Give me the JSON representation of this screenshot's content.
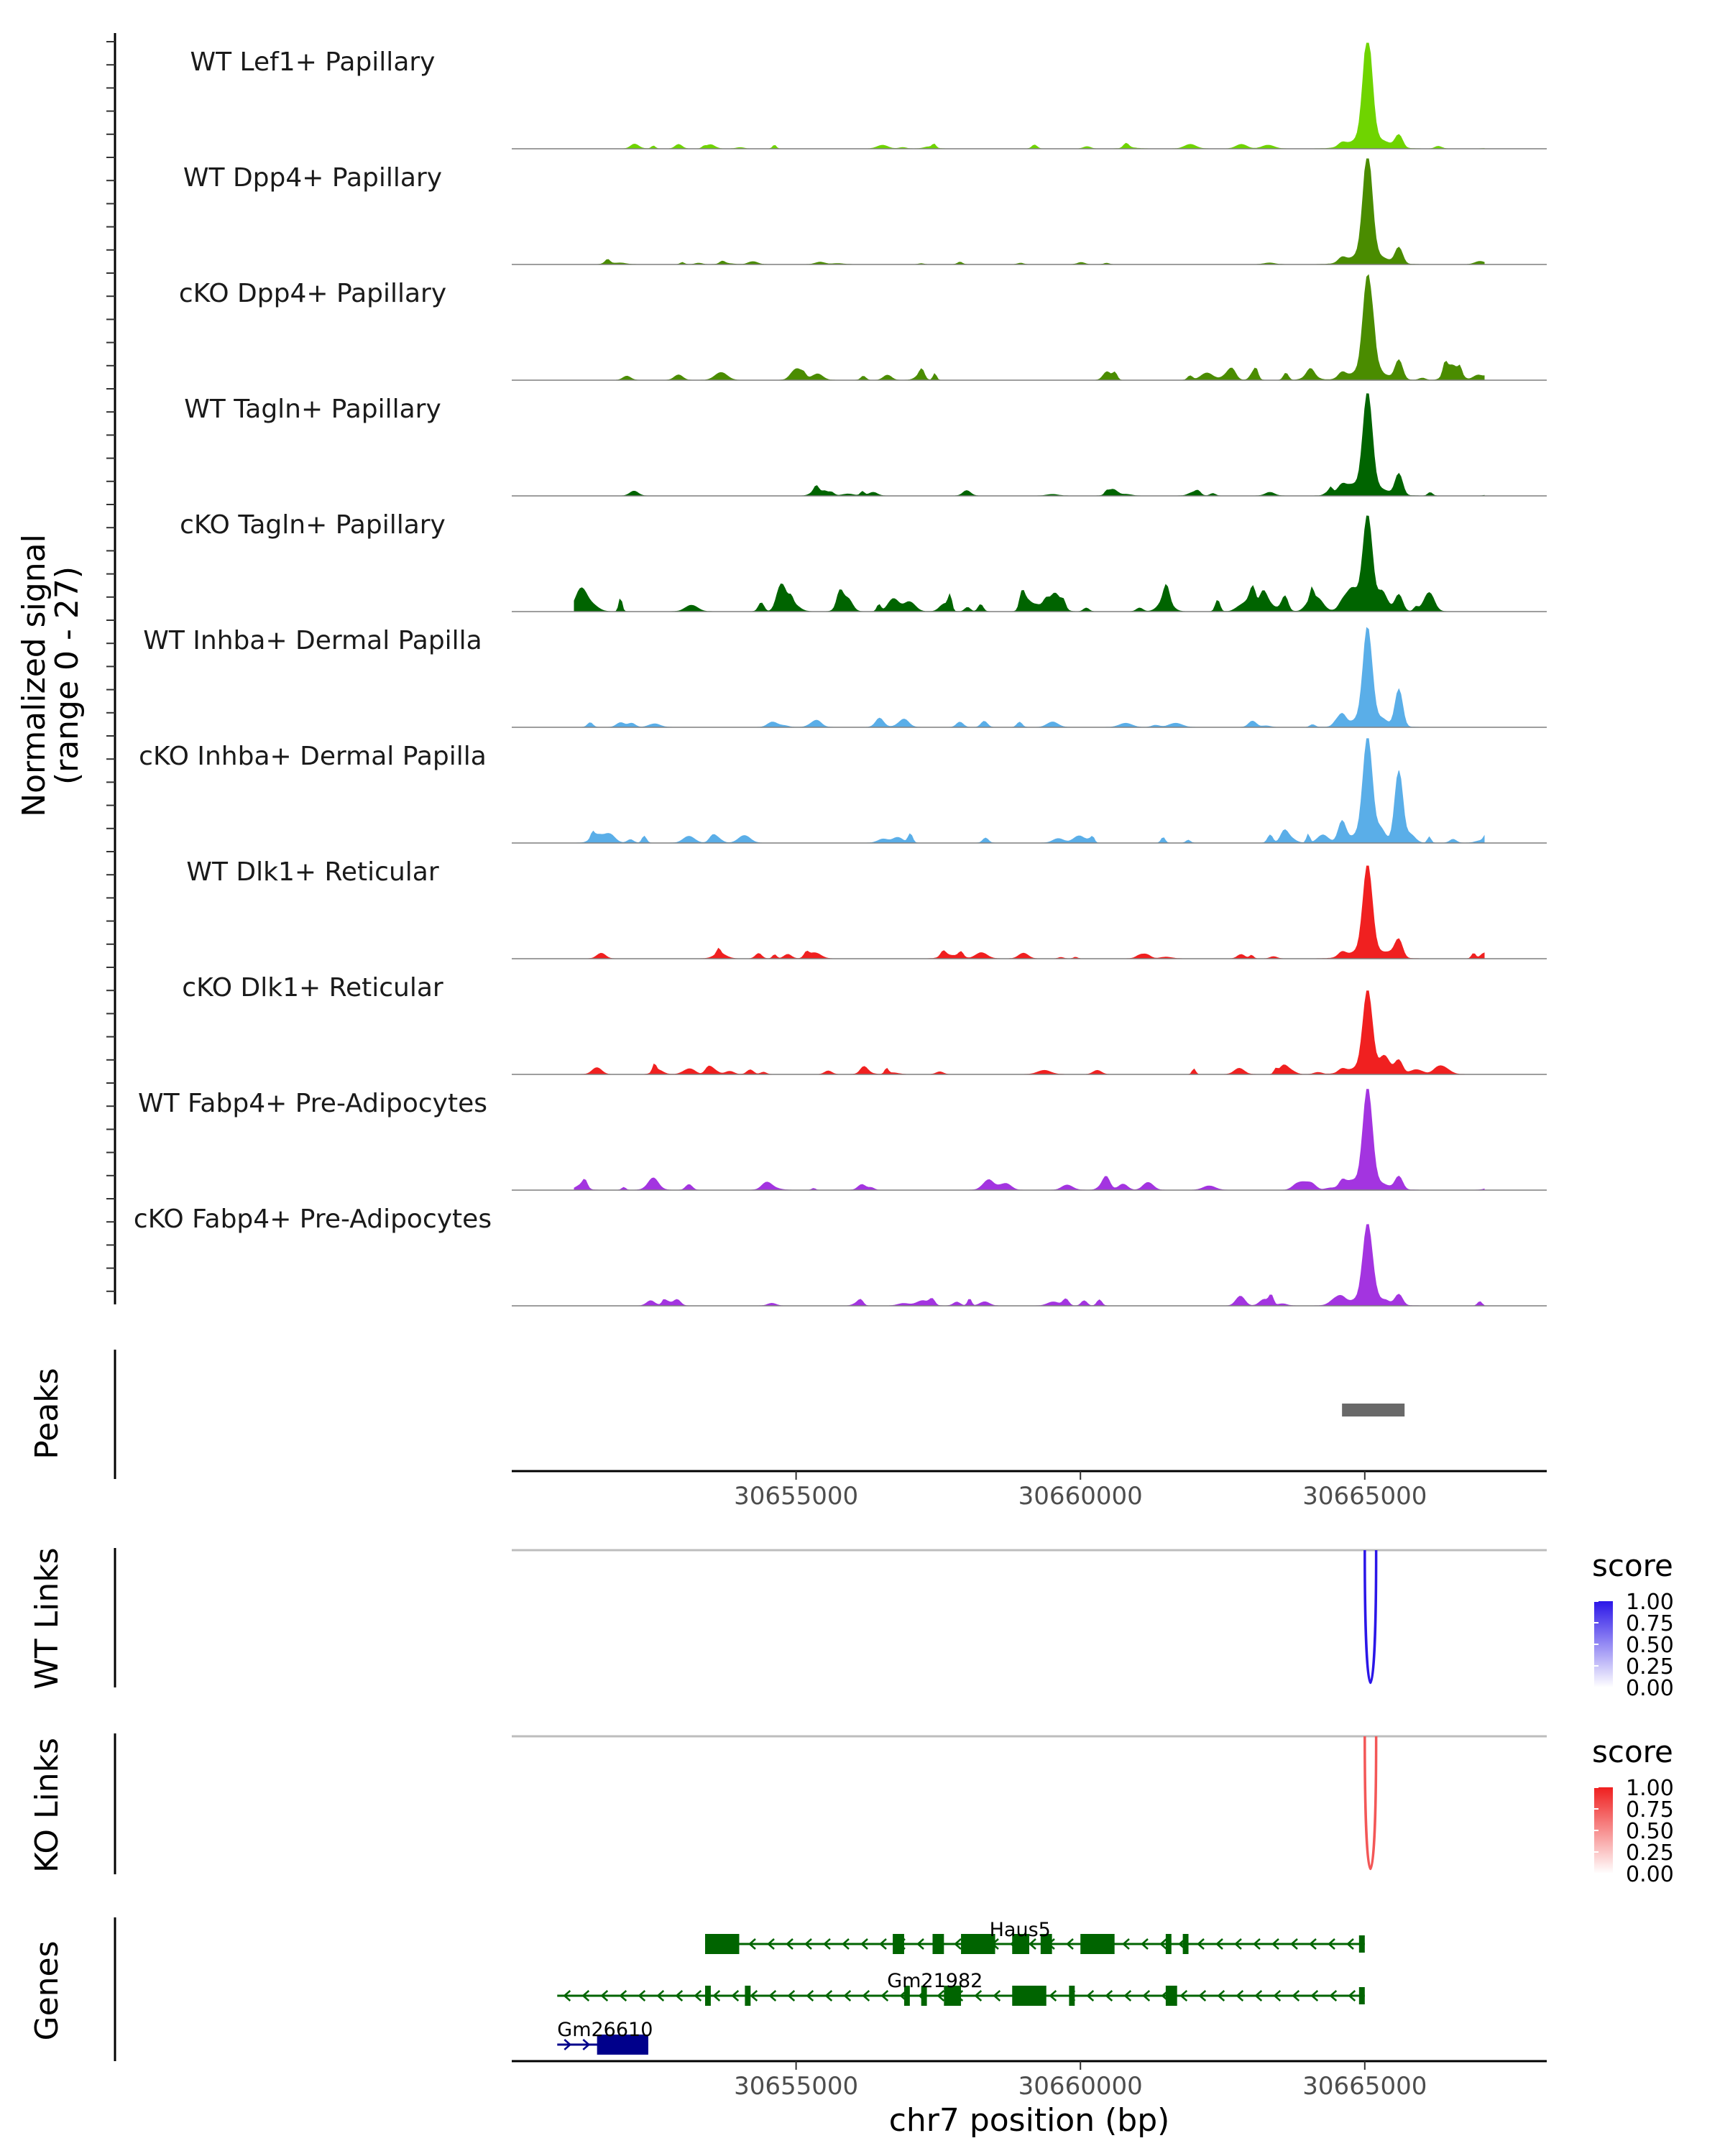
{
  "chart_data": {
    "type": "genome_browser",
    "chromosome": "chr7",
    "xlim": [
      30650000,
      30668200
    ],
    "x_ticks": [
      30655000,
      30660000,
      30665000
    ],
    "x_tick_labels": [
      "30655000",
      "30660000",
      "30665000"
    ],
    "xlabel": "chr7 position (bp)",
    "coverage": {
      "ylabel_line1": "Normalized signal",
      "ylabel_line2": "(range 0 - 27)",
      "range": [
        0,
        27
      ],
      "tracks": [
        {
          "name": "WT Lef1+ Papillary",
          "color": "#6fd400",
          "peak": 0.97,
          "peak2": 0.12,
          "noise": 0.03,
          "seed": 1
        },
        {
          "name": "WT Dpp4+ Papillary",
          "color": "#4a8c00",
          "peak": 0.95,
          "peak2": 0.15,
          "noise": 0.02,
          "seed": 2
        },
        {
          "name": "cKO Dpp4+ Papillary",
          "color": "#4a8c00",
          "peak": 0.88,
          "peak2": 0.18,
          "noise": 0.06,
          "seed": 3
        },
        {
          "name": "WT Tagln+ Papillary",
          "color": "#006400",
          "peak": 0.88,
          "peak2": 0.2,
          "noise": 0.04,
          "seed": 4
        },
        {
          "name": "cKO Tagln+ Papillary",
          "color": "#006400",
          "peak": 0.82,
          "peak2": 0.15,
          "noise": 0.1,
          "seed": 5
        },
        {
          "name": "WT Inhba+ Dermal Papilla",
          "color": "#5aaee8",
          "peak": 0.82,
          "peak2": 0.35,
          "noise": 0.04,
          "seed": 6
        },
        {
          "name": "cKO Inhba+ Dermal Papilla",
          "color": "#5aaee8",
          "peak": 0.9,
          "peak2": 0.62,
          "noise": 0.06,
          "seed": 7
        },
        {
          "name": "WT Dlk1+ Reticular",
          "color": "#f02020",
          "peak": 0.8,
          "peak2": 0.15,
          "noise": 0.04,
          "seed": 8
        },
        {
          "name": "cKO Dlk1+ Reticular",
          "color": "#f02020",
          "peak": 0.72,
          "peak2": 0.12,
          "noise": 0.05,
          "seed": 9
        },
        {
          "name": "WT Fabp4+ Pre-Adipocytes",
          "color": "#a334e0",
          "peak": 0.87,
          "peak2": 0.12,
          "noise": 0.05,
          "seed": 10
        },
        {
          "name": "cKO Fabp4+ Pre-Adipocytes",
          "color": "#a334e0",
          "peak": 0.7,
          "peak2": 0.1,
          "noise": 0.05,
          "seed": 11
        }
      ]
    },
    "peaks": {
      "label": "Peaks",
      "regions": [
        [
          30664600,
          30665700
        ]
      ],
      "color": "#696969"
    },
    "links": [
      {
        "label": "WT Links",
        "start": 30665000,
        "end": 30665200,
        "score": 1.0,
        "legend_title": "score",
        "legend_ticks": [
          "1.00",
          "0.75",
          "0.50",
          "0.25",
          "0.00"
        ],
        "color_high": "#2b16e8",
        "color_low": "#ffffff"
      },
      {
        "label": "KO Links",
        "start": 30665000,
        "end": 30665200,
        "score": 0.75,
        "legend_title": "score",
        "legend_ticks": [
          "1.00",
          "0.75",
          "0.50",
          "0.25",
          "0.00"
        ],
        "color_high": "#ef1f1f",
        "color_low": "#ffffff"
      }
    ],
    "genes": {
      "label": "Genes",
      "items": [
        {
          "name": "Haus5",
          "strand": "-",
          "start": 30653400,
          "end": 30665000,
          "color": "#006400",
          "exons": [
            [
              30653400,
              30654000
            ],
            [
              30656700,
              30656900
            ],
            [
              30657400,
              30657600
            ],
            [
              30657900,
              30658500
            ],
            [
              30658800,
              30659100
            ],
            [
              30659300,
              30659500
            ],
            [
              30660000,
              30660600
            ],
            [
              30661500,
              30661600
            ],
            [
              30661800,
              30661900
            ]
          ]
        },
        {
          "name": "Gm21982",
          "strand": "-",
          "start": 30650800,
          "end": 30665000,
          "color": "#006400",
          "exons": [
            [
              30653400,
              30653500
            ],
            [
              30654100,
              30654200
            ],
            [
              30656900,
              30657000
            ],
            [
              30657200,
              30657300
            ],
            [
              30657600,
              30657900
            ],
            [
              30658800,
              30659400
            ],
            [
              30659800,
              30659900
            ],
            [
              30661500,
              30661700
            ]
          ]
        },
        {
          "name": "Gm26610",
          "strand": "+",
          "start": 30650800,
          "end": 30652400,
          "color": "#00008b",
          "exons": [
            [
              30651500,
              30652400
            ]
          ]
        }
      ]
    }
  }
}
